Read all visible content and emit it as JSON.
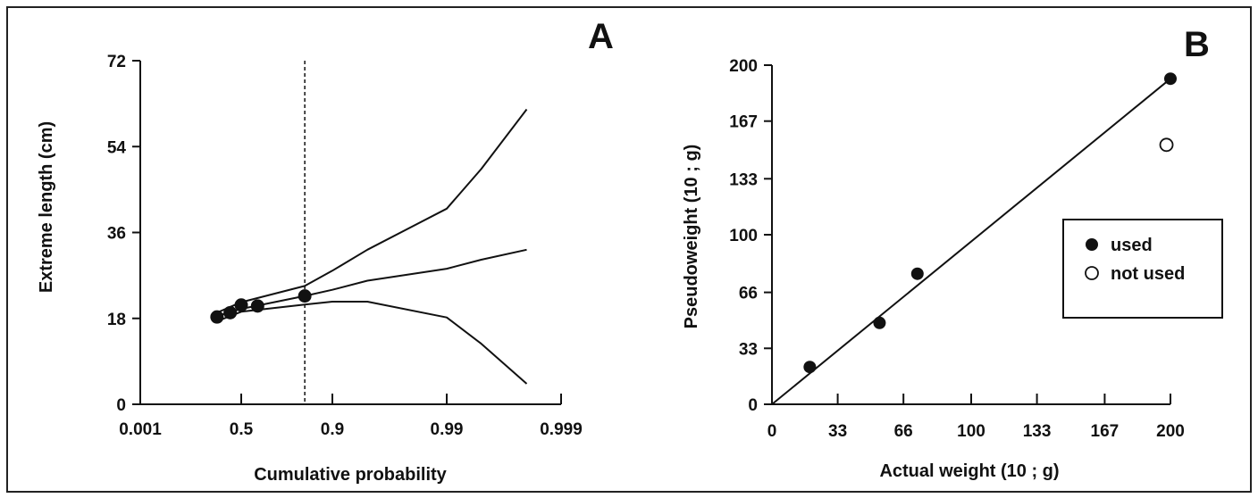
{
  "chart_data": [
    {
      "panel": "A",
      "type": "line",
      "xlabel": "Cumulative probability",
      "ylabel": "Extreme length (cm)",
      "x_scale": "probability",
      "x_ticks": [
        "0.001",
        "0.5",
        "0.9",
        "0.99",
        "0.999"
      ],
      "y_ticks": [
        "0",
        "18",
        "36",
        "54",
        "72"
      ],
      "ylim": [
        0,
        72
      ],
      "vline_x": 0.83,
      "points": [
        {
          "x": 0.3,
          "y": 18.3
        },
        {
          "x": 0.41,
          "y": 19.2
        },
        {
          "x": 0.5,
          "y": 20.8
        },
        {
          "x": 0.61,
          "y": 20.6
        },
        {
          "x": 0.83,
          "y": 22.7
        }
      ],
      "series": [
        {
          "role": "fit",
          "x": [
            0.3,
            0.5,
            0.83,
            0.9,
            0.95,
            0.99,
            0.995,
            0.998
          ],
          "y": [
            18.5,
            20.0,
            22.7,
            24.0,
            25.9,
            28.4,
            30.3,
            32.4
          ]
        },
        {
          "role": "upper-confidence",
          "x": [
            0.3,
            0.5,
            0.83,
            0.9,
            0.95,
            0.99,
            0.995,
            0.998
          ],
          "y": [
            19.2,
            21.4,
            24.8,
            28.0,
            32.4,
            41.0,
            49.3,
            61.8
          ]
        },
        {
          "role": "lower-confidence",
          "x": [
            0.3,
            0.5,
            0.83,
            0.9,
            0.95,
            0.99,
            0.995,
            0.998
          ],
          "y": [
            17.4,
            19.4,
            20.9,
            21.5,
            21.5,
            18.2,
            12.7,
            4.3
          ]
        }
      ],
      "grid": false
    },
    {
      "panel": "B",
      "type": "scatter",
      "xlabel": "Actual weight (10  ; g)",
      "ylabel": "Pseudoweight (10  ; g)",
      "x_ticks": [
        "0",
        "33",
        "66",
        "100",
        "133",
        "167",
        "200"
      ],
      "y_ticks": [
        "0",
        "33",
        "66",
        "100",
        "133",
        "167",
        "200"
      ],
      "xlim": [
        0,
        200
      ],
      "ylim": [
        0,
        200
      ],
      "series": [
        {
          "name": "used",
          "marker": "filled",
          "x": [
            19,
            54,
            73,
            200
          ],
          "y": [
            22,
            48,
            77,
            192
          ]
        },
        {
          "name": "not used",
          "marker": "open",
          "x": [
            198
          ],
          "y": [
            153
          ]
        }
      ],
      "fit_line": {
        "x": [
          0,
          200
        ],
        "y": [
          0,
          192
        ]
      },
      "legend": {
        "placement": "right-middle",
        "entries": [
          "used",
          "not used"
        ]
      },
      "grid": false
    }
  ]
}
